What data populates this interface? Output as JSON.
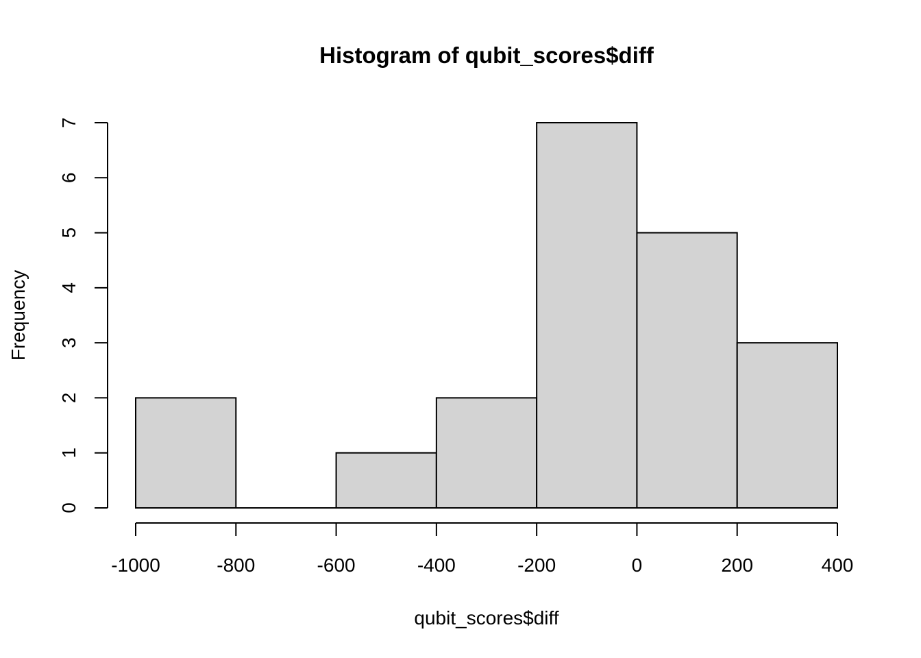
{
  "chart_data": {
    "type": "bar",
    "subtype": "histogram",
    "title": "Histogram of qubit_scores$diff",
    "xlabel": "qubit_scores$diff",
    "ylabel": "Frequency",
    "bins": [
      {
        "x0": -1000,
        "x1": -800,
        "count": 2
      },
      {
        "x0": -800,
        "x1": -600,
        "count": 0
      },
      {
        "x0": -600,
        "x1": -400,
        "count": 1
      },
      {
        "x0": -400,
        "x1": -200,
        "count": 2
      },
      {
        "x0": -200,
        "x1": 0,
        "count": 7
      },
      {
        "x0": 0,
        "x1": 200,
        "count": 5
      },
      {
        "x0": 200,
        "x1": 400,
        "count": 3
      }
    ],
    "xlim": [
      -1000,
      400
    ],
    "ylim": [
      0,
      7
    ],
    "x_ticks": [
      -1000,
      -800,
      -600,
      -400,
      -200,
      0,
      200,
      400
    ],
    "y_ticks": [
      0,
      1,
      2,
      3,
      4,
      5,
      6,
      7
    ],
    "grid": false,
    "legend": "none",
    "colors": {
      "bar_fill": "#d3d3d3",
      "bar_stroke": "#000000",
      "axis": "#000000"
    }
  }
}
